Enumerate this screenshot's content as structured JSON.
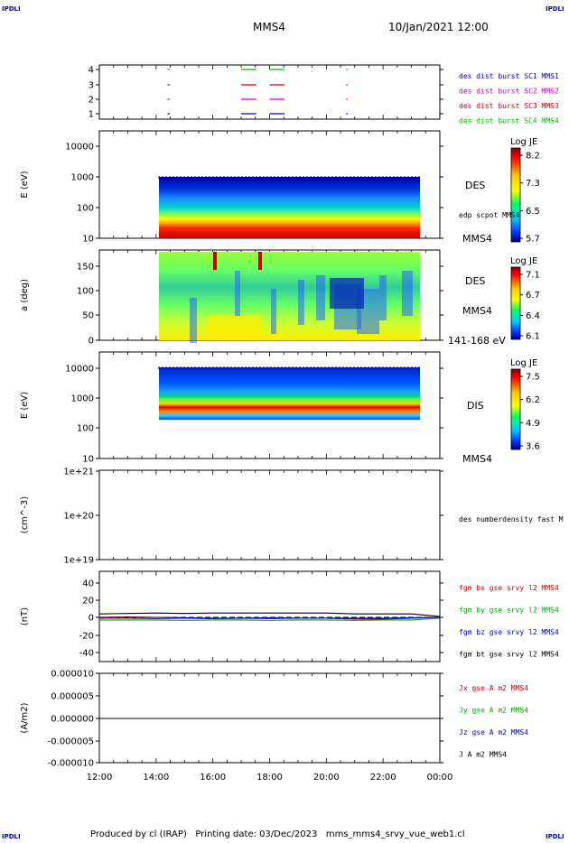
{
  "header": {
    "title": "MMS4",
    "date": "10/Jan/2021 12:00",
    "corner_label": "IPDLI"
  },
  "footer": {
    "text": "Produced by cl (IRAP)   Printing date: 03/Dec/2023   mms_mms4_srvy_vue_web1.cl"
  },
  "time_axis": {
    "ticks": [
      "12:00",
      "14:00",
      "16:00",
      "18:00",
      "20:00",
      "22:00",
      "00:00"
    ],
    "range_hours": [
      12,
      24
    ]
  },
  "colors": {
    "mms1": "#0000cc",
    "mms2": "#cc00cc",
    "mms3": "#cc0000",
    "mms4": "#00bb00",
    "bx": "#cc0000",
    "by": "#00aa00",
    "bz": "#0000cc",
    "bt": "#000000"
  },
  "chart_data": [
    {
      "type": "scatter",
      "name": "burst-availability",
      "yticks": [
        "4",
        "3",
        "2",
        "1"
      ],
      "ylim": [
        0.5,
        4.5
      ],
      "legend": [
        {
          "label": "des dist burst SC1 MMS1",
          "color": "#0000cc"
        },
        {
          "label": "des dist burst SC2 MMS2",
          "color": "#cc00cc"
        },
        {
          "label": "des dist burst SC3 MMS3",
          "color": "#cc0000"
        },
        {
          "label": "des dist burst SC4 MMS4",
          "color": "#00bb00"
        }
      ],
      "segments": [
        {
          "sc": 1,
          "start": 14.4,
          "end": 14.45
        },
        {
          "sc": 1,
          "start": 17.0,
          "end": 17.5
        },
        {
          "sc": 1,
          "start": 18.0,
          "end": 18.5
        },
        {
          "sc": 1,
          "start": 20.7,
          "end": 20.72
        },
        {
          "sc": 2,
          "start": 14.4,
          "end": 14.45
        },
        {
          "sc": 2,
          "start": 17.0,
          "end": 17.5
        },
        {
          "sc": 2,
          "start": 18.0,
          "end": 18.5
        },
        {
          "sc": 2,
          "start": 20.7,
          "end": 20.72
        },
        {
          "sc": 3,
          "start": 14.4,
          "end": 14.45
        },
        {
          "sc": 3,
          "start": 17.0,
          "end": 17.5
        },
        {
          "sc": 3,
          "start": 18.0,
          "end": 18.5
        },
        {
          "sc": 3,
          "start": 20.7,
          "end": 20.72
        },
        {
          "sc": 4,
          "start": 14.4,
          "end": 14.45
        },
        {
          "sc": 4,
          "start": 17.0,
          "end": 17.5
        },
        {
          "sc": 4,
          "start": 18.0,
          "end": 18.5
        },
        {
          "sc": 4,
          "start": 20.7,
          "end": 20.72
        }
      ]
    },
    {
      "type": "heatmap",
      "name": "des-energy-spectrogram",
      "ylabel": "E (eV)",
      "yscale": "log",
      "yticks": [
        "10000",
        "1000",
        "100",
        "10"
      ],
      "ylim": [
        10,
        20000
      ],
      "data_time": [
        14.1,
        23.3
      ],
      "label": "DES",
      "side_text": "edp scpot MMS4",
      "bottom_label": "MMS4",
      "colorbar": {
        "title": "Log JE",
        "ticks": [
          "8.2",
          "7.3",
          "6.5",
          "5.7"
        ]
      }
    },
    {
      "type": "heatmap",
      "name": "des-pitch-angle",
      "ylabel": "a (deg)",
      "yticks": [
        "150",
        "100",
        "50",
        "0"
      ],
      "ylim": [
        0,
        180
      ],
      "data_time": [
        14.1,
        23.3
      ],
      "label": "DES",
      "side_text": "MMS4",
      "bottom_label": "141-168 eV",
      "colorbar": {
        "title": "Log JE",
        "ticks": [
          "7.1",
          "6.7",
          "6.4",
          "6.1"
        ]
      }
    },
    {
      "type": "heatmap",
      "name": "dis-energy-spectrogram",
      "ylabel": "E (eV)",
      "yscale": "log",
      "yticks": [
        "10000",
        "1000",
        "100",
        "10"
      ],
      "ylim": [
        10,
        20000
      ],
      "data_time": [
        14.1,
        23.3
      ],
      "label": "DIS",
      "bottom_label": "MMS4",
      "colorbar": {
        "title": "Log JE",
        "ticks": [
          "7.5",
          "6.2",
          "4.9",
          "3.6"
        ]
      }
    },
    {
      "type": "line",
      "name": "number-density",
      "ylabel": "(cm^-3)",
      "yscale": "log",
      "yticks": [
        "1e+21",
        "1e+20",
        "1e+19"
      ],
      "legend": [
        {
          "label": "des numberdensity fast M",
          "color": "#000000"
        }
      ],
      "series": []
    },
    {
      "type": "line",
      "name": "magnetic-field",
      "ylabel": "(nT)",
      "yticks": [
        "40",
        "20",
        "0",
        "-20",
        "-40"
      ],
      "ylim": [
        -50,
        50
      ],
      "legend": [
        {
          "label": "fgm bx gse srvy l2 MMS4",
          "color": "#cc0000"
        },
        {
          "label": "fgm by gse srvy l2 MMS4",
          "color": "#00aa00"
        },
        {
          "label": "fgm bz gse srvy l2 MMS4",
          "color": "#0000cc"
        },
        {
          "label": "fgm bt gse srvy l2 MMS4",
          "color": "#000000"
        }
      ],
      "x": [
        12,
        13,
        14,
        15,
        16,
        17,
        18,
        19,
        20,
        21,
        22,
        23,
        24
      ],
      "series": [
        {
          "name": "fgm bx gse srvy l2 MMS4",
          "values": [
            -1,
            -1,
            -1.5,
            -1,
            -1.5,
            -1,
            -1.5,
            -1,
            -1,
            -2,
            -2,
            -1,
            0
          ]
        },
        {
          "name": "fgm by gse srvy l2 MMS4",
          "values": [
            -3,
            -3,
            -3,
            -3.5,
            -3,
            -3,
            -3.5,
            -3,
            -3,
            -3.5,
            -3,
            -3,
            -1
          ]
        },
        {
          "name": "fgm bz gse srvy l2 MMS4",
          "values": [
            0,
            0.5,
            0,
            -0.5,
            -1,
            -1,
            -0.5,
            -1,
            -1,
            -1,
            -1,
            -0.5,
            0
          ]
        },
        {
          "name": "fgm bt gse srvy l2 MMS4",
          "values": [
            4,
            4.5,
            5,
            4.5,
            5,
            5,
            5,
            5,
            5,
            4,
            4,
            4,
            1
          ]
        }
      ]
    },
    {
      "type": "line",
      "name": "current-density",
      "ylabel": "(A/m2)",
      "yticks": [
        "0.000010",
        "0.000005",
        "0.000000",
        "-0.000005",
        "-0.000010"
      ],
      "ylim": [
        -1e-05,
        1e-05
      ],
      "legend": [
        {
          "label": "Jx gse A m2 MMS4",
          "color": "#cc0000"
        },
        {
          "label": "Jy gse A m2 MMS4",
          "color": "#00aa00"
        },
        {
          "label": "Jz gse A m2 MMS4",
          "color": "#0000cc"
        },
        {
          "label": "J A m2 MMS4",
          "color": "#000000"
        }
      ],
      "x": [
        12,
        24
      ],
      "series": [
        {
          "name": "J A m2 MMS4",
          "values": [
            0,
            0
          ]
        }
      ]
    }
  ]
}
